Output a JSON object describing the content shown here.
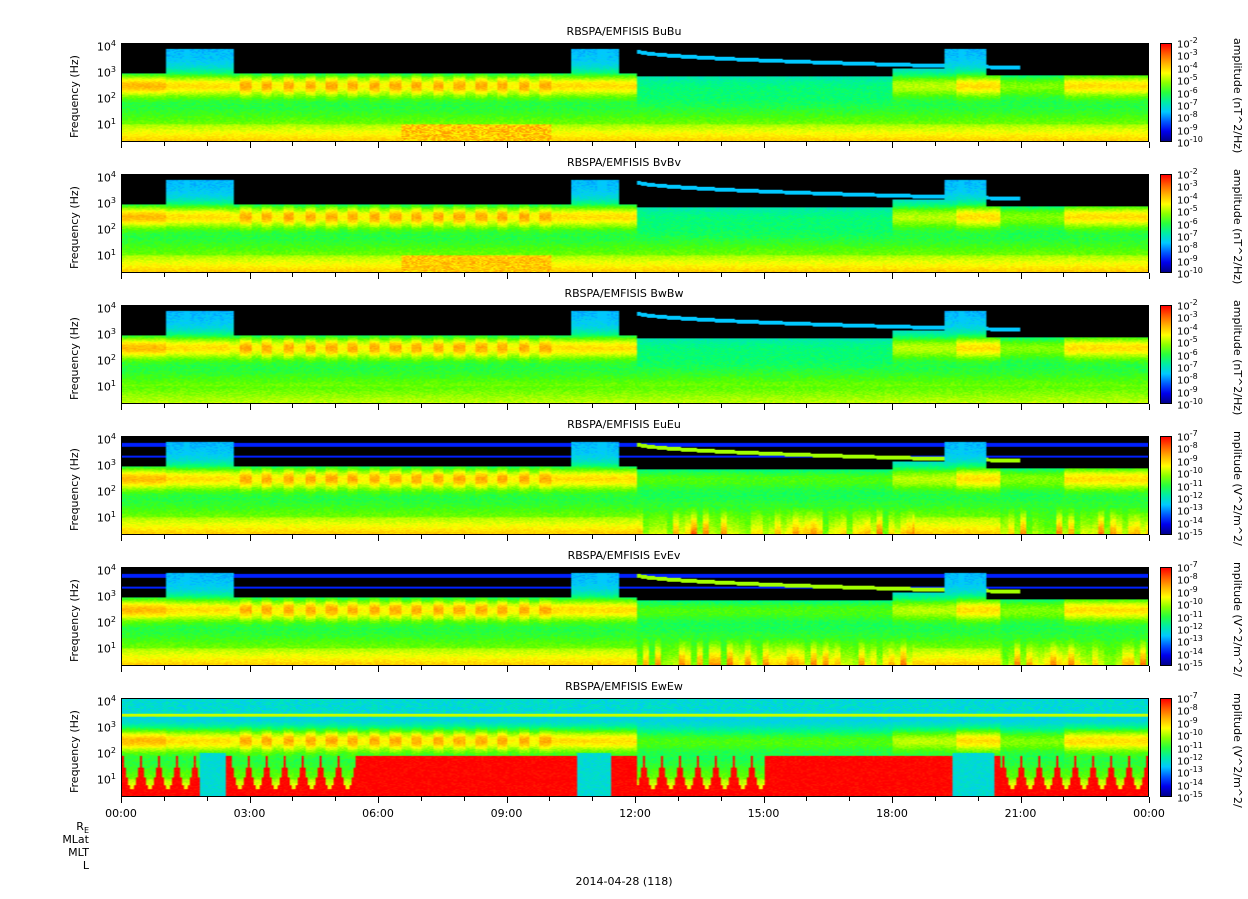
{
  "chart_data": [
    {
      "type": "heatmap",
      "title": "RBSPA/EMFISIS  BuBu",
      "ylabel": "Frequency (Hz)",
      "yticks": [
        "10",
        "10",
        "10",
        "10"
      ],
      "yexp": [
        "1",
        "2",
        "3",
        "4"
      ],
      "cbar_label": "amplitude (nT^2/Hz)",
      "cbar_base": "10",
      "cbar_exps": [
        "-2",
        "-3",
        "-4",
        "-5",
        "-6",
        "-7",
        "-8",
        "-9",
        "-10"
      ],
      "variant": "B",
      "fill": "normal"
    },
    {
      "type": "heatmap",
      "title": "RBSPA/EMFISIS  BvBv",
      "ylabel": "Frequency (Hz)",
      "yticks": [
        "10",
        "10",
        "10",
        "10"
      ],
      "yexp": [
        "1",
        "2",
        "3",
        "4"
      ],
      "cbar_label": "amplitude (nT^2/Hz)",
      "cbar_base": "10",
      "cbar_exps": [
        "-2",
        "-3",
        "-4",
        "-5",
        "-6",
        "-7",
        "-8",
        "-9",
        "-10"
      ],
      "variant": "B",
      "fill": "normal"
    },
    {
      "type": "heatmap",
      "title": "RBSPA/EMFISIS  BwBw",
      "ylabel": "Frequency (Hz)",
      "yticks": [
        "10",
        "10",
        "10",
        "10"
      ],
      "yexp": [
        "1",
        "2",
        "3",
        "4"
      ],
      "cbar_label": "amplitude (nT^2/Hz)",
      "cbar_base": "10",
      "cbar_exps": [
        "-2",
        "-3",
        "-4",
        "-5",
        "-6",
        "-7",
        "-8",
        "-9",
        "-10"
      ],
      "variant": "B",
      "fill": "low"
    },
    {
      "type": "heatmap",
      "title": "RBSPA/EMFISIS  EuEu",
      "ylabel": "Frequency (Hz)",
      "yticks": [
        "10",
        "10",
        "10",
        "10"
      ],
      "yexp": [
        "1",
        "2",
        "3",
        "4"
      ],
      "cbar_label": "mplitude (V^2/m^2/",
      "cbar_base": "10",
      "cbar_exps": [
        "-7",
        "-8",
        "-9",
        "-10",
        "-11",
        "-12",
        "-13",
        "-14",
        "-15"
      ],
      "variant": "E",
      "fill": "normal"
    },
    {
      "type": "heatmap",
      "title": "RBSPA/EMFISIS  EvEv",
      "ylabel": "Frequency (Hz)",
      "yticks": [
        "10",
        "10",
        "10",
        "10"
      ],
      "yexp": [
        "1",
        "2",
        "3",
        "4"
      ],
      "cbar_label": "mplitude (V^2/m^2/",
      "cbar_base": "10",
      "cbar_exps": [
        "-7",
        "-8",
        "-9",
        "-10",
        "-11",
        "-12",
        "-13",
        "-14",
        "-15"
      ],
      "variant": "E",
      "fill": "normal"
    },
    {
      "type": "heatmap",
      "title": "RBSPA/EMFISIS  EwEw",
      "ylabel": "Frequency (Hz)",
      "yticks": [
        "10",
        "10",
        "10",
        "10"
      ],
      "yexp": [
        "1",
        "2",
        "3",
        "4"
      ],
      "cbar_label": "mplitude (V^2/m^2/",
      "cbar_base": "10",
      "cbar_exps": [
        "-7",
        "-8",
        "-9",
        "-10",
        "-11",
        "-12",
        "-13",
        "-14",
        "-15"
      ],
      "variant": "W",
      "fill": "red"
    }
  ],
  "xaxis": {
    "ticks": [
      "00:00",
      "03:00",
      "06:00",
      "09:00",
      "12:00",
      "15:00",
      "18:00",
      "21:00",
      "00:00"
    ]
  },
  "rows": {
    "re": "R",
    "re_sub": "E",
    "mlat": "MLat",
    "mlt": "MLT",
    "l": "L"
  },
  "date_label": "2014-04-28 (118)",
  "colors": {
    "black": "#000000",
    "blue": "#0000ff",
    "green": "#00ff00",
    "yellow": "#ffff00",
    "red": "#ff0000"
  }
}
